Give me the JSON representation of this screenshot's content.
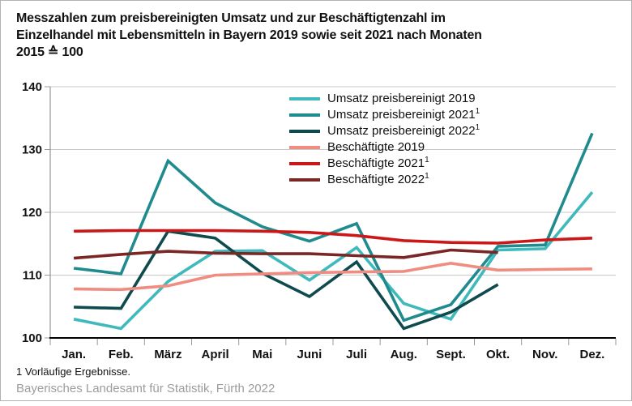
{
  "title": {
    "lines": [
      "Messzahlen zum preisbereinigten Umsatz und zur Beschäftigtenzahl im",
      "Einzelhandel mit Lebensmitteln in Bayern 2019 sowie seit 2021 nach Monaten",
      "2015 ≙ 100"
    ]
  },
  "footnote": "1  Vorläufige Ergebnisse.",
  "source": "Bayerisches Landesamt für Statistik, Fürth 2022",
  "chart_data": {
    "type": "line",
    "categories": [
      "Jan.",
      "Feb.",
      "März",
      "April",
      "Mai",
      "Juni",
      "Juli",
      "Aug.",
      "Sept.",
      "Okt.",
      "Nov.",
      "Dez."
    ],
    "y_ticks": [
      100,
      110,
      120,
      130,
      140
    ],
    "ylim": [
      100,
      140
    ],
    "grid": true,
    "legend_position": "inside-top-center",
    "axis_colors": {
      "grid": "#c9c9c9",
      "left_axis": "#7f7f7f",
      "bottom_axis": "#000000",
      "tick": "#999999"
    },
    "series": [
      {
        "name": "Umsatz preisbereinigt 2019",
        "sup": "",
        "color": "#3fb9bb",
        "values": [
          103.0,
          101.5,
          109.0,
          113.8,
          113.9,
          109.2,
          114.4,
          105.5,
          103.0,
          114.0,
          114.2,
          123.2
        ]
      },
      {
        "name": "Umsatz preisbereinigt 2021",
        "sup": "1",
        "color": "#1f8b8e",
        "values": [
          111.1,
          110.2,
          128.2,
          121.5,
          117.7,
          115.4,
          118.2,
          102.8,
          105.3,
          114.6,
          114.8,
          132.6
        ]
      },
      {
        "name": "Umsatz preisbereinigt 2022",
        "sup": "1",
        "color": "#0f4b4e",
        "values": [
          104.9,
          104.7,
          117.0,
          115.9,
          110.3,
          106.6,
          112.1,
          101.5,
          104.1,
          108.5,
          null,
          null
        ]
      },
      {
        "name": "Beschäftigte 2019",
        "sup": "",
        "color": "#f08c81",
        "values": [
          107.8,
          107.7,
          108.3,
          110.0,
          110.2,
          110.4,
          110.5,
          110.6,
          111.9,
          110.8,
          110.9,
          111.0
        ]
      },
      {
        "name": "Beschäftigte 2021",
        "sup": "1",
        "color": "#cc1719",
        "values": [
          117.0,
          117.1,
          117.1,
          117.1,
          117.0,
          116.8,
          116.3,
          115.5,
          115.2,
          115.1,
          115.6,
          115.9
        ]
      },
      {
        "name": "Beschäftigte 2022",
        "sup": "1",
        "color": "#7a2625",
        "values": [
          112.7,
          113.3,
          113.8,
          113.5,
          113.4,
          113.4,
          113.1,
          112.8,
          114.0,
          113.6,
          null,
          null
        ]
      }
    ]
  }
}
